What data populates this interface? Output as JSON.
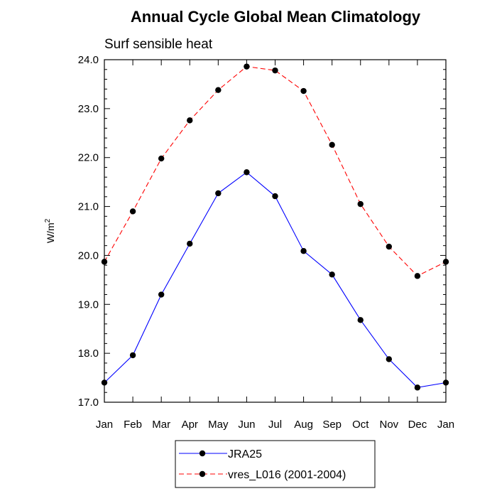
{
  "chart_data": {
    "type": "line",
    "title": "Annual Cycle Global Mean Climatology",
    "subtitle": "Surf sensible heat",
    "ylabel": "W/m",
    "ylabel_sup": "2",
    "xlabel": "",
    "categories": [
      "Jan",
      "Feb",
      "Mar",
      "Apr",
      "May",
      "Jun",
      "Jul",
      "Aug",
      "Sep",
      "Oct",
      "Nov",
      "Dec",
      "Jan"
    ],
    "ylim": [
      17.0,
      24.0
    ],
    "yticks": [
      "17.0",
      "18.0",
      "19.0",
      "20.0",
      "21.0",
      "22.0",
      "23.0",
      "24.0"
    ],
    "grid": false,
    "legend_position": "bottom-center",
    "series": [
      {
        "name": "JRA25",
        "color": "#0000ff",
        "style": "solid",
        "marker": "circle",
        "values": [
          17.4,
          17.96,
          19.2,
          20.24,
          21.27,
          21.7,
          21.21,
          20.09,
          19.61,
          18.68,
          17.88,
          17.3,
          17.4
        ]
      },
      {
        "name": "vres_L016 (2001-2004)",
        "color": "#ff0000",
        "style": "dashed",
        "marker": "circle",
        "values": [
          19.87,
          20.9,
          21.98,
          22.76,
          23.38,
          23.86,
          23.78,
          23.36,
          22.26,
          21.05,
          20.18,
          19.58,
          19.87
        ]
      }
    ]
  }
}
